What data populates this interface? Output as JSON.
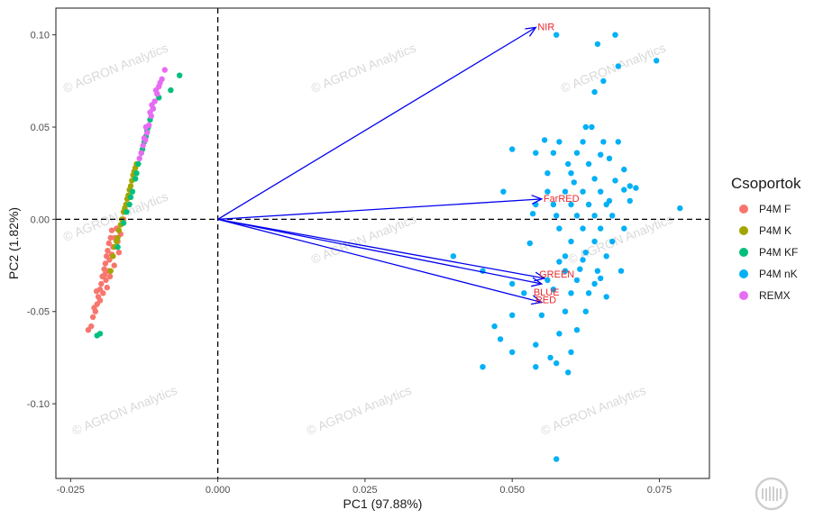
{
  "chart_data": {
    "type": "scatter",
    "title": "",
    "xlabel": "PC1 (97.88%)",
    "ylabel": "PC2 (1.82%)",
    "xlim": [
      -0.0275,
      0.0835
    ],
    "ylim": [
      -0.1405,
      0.1145
    ],
    "xticks": [
      -0.025,
      0.0,
      0.025,
      0.05,
      0.075
    ],
    "xtick_labels": [
      "-0.025",
      "0.000",
      "0.025",
      "0.050",
      "0.075"
    ],
    "yticks": [
      -0.1,
      -0.05,
      0.0,
      0.05,
      0.1
    ],
    "ytick_labels": [
      "-0.10",
      "-0.05",
      "0.00",
      "0.05",
      "0.10"
    ],
    "reference_lines": {
      "x": 0,
      "y": 0,
      "style": "dashed"
    },
    "grid": false,
    "legend": {
      "title": "Csoportok",
      "position": "right"
    },
    "series": [
      {
        "name": "P4M F",
        "color": "#F8766D",
        "points": [
          [
            -0.0215,
            -0.058
          ],
          [
            -0.0212,
            -0.053
          ],
          [
            -0.0208,
            -0.05
          ],
          [
            -0.0205,
            -0.046
          ],
          [
            -0.0203,
            -0.042
          ],
          [
            -0.02,
            -0.038
          ],
          [
            -0.0198,
            -0.035
          ],
          [
            -0.0196,
            -0.031
          ],
          [
            -0.0193,
            -0.027
          ],
          [
            -0.0191,
            -0.024
          ],
          [
            -0.0189,
            -0.02
          ],
          [
            -0.0187,
            -0.017
          ],
          [
            -0.0185,
            -0.013
          ],
          [
            -0.0182,
            -0.01
          ],
          [
            -0.018,
            -0.006
          ],
          [
            -0.021,
            -0.048
          ],
          [
            -0.0195,
            -0.04
          ],
          [
            -0.019,
            -0.033
          ],
          [
            -0.0184,
            -0.022
          ],
          [
            -0.0178,
            -0.015
          ],
          [
            -0.0175,
            -0.01
          ],
          [
            -0.0172,
            -0.005
          ],
          [
            -0.0186,
            -0.028
          ],
          [
            -0.02,
            -0.044
          ],
          [
            -0.018,
            -0.019
          ],
          [
            -0.022,
            -0.06
          ],
          [
            -0.0188,
            -0.037
          ],
          [
            -0.0192,
            -0.03
          ],
          [
            -0.017,
            -0.012
          ],
          [
            -0.0176,
            -0.025
          ],
          [
            -0.0165,
            -0.008
          ],
          [
            -0.016,
            0.0
          ],
          [
            -0.0206,
            -0.039
          ],
          [
            -0.0183,
            -0.031
          ],
          [
            -0.0168,
            -0.018
          ]
        ]
      },
      {
        "name": "P4M K",
        "color": "#A3A500",
        "points": [
          [
            -0.0182,
            -0.028
          ],
          [
            -0.0178,
            -0.02
          ],
          [
            -0.0172,
            -0.012
          ],
          [
            -0.0168,
            -0.006
          ],
          [
            -0.0163,
            0.0
          ],
          [
            -0.0158,
            0.006
          ],
          [
            -0.0154,
            0.011
          ],
          [
            -0.015,
            0.016
          ],
          [
            -0.0146,
            0.021
          ],
          [
            -0.0142,
            0.026
          ],
          [
            -0.0138,
            0.03
          ],
          [
            -0.016,
            0.004
          ],
          [
            -0.0152,
            0.013
          ],
          [
            -0.0144,
            0.024
          ],
          [
            -0.0165,
            -0.003
          ],
          [
            -0.0156,
            0.008
          ],
          [
            -0.0148,
            0.018
          ],
          [
            -0.017,
            -0.01
          ],
          [
            -0.014,
            0.028
          ],
          [
            -0.0175,
            -0.015
          ]
        ]
      },
      {
        "name": "P4M KF",
        "color": "#00BF7D",
        "points": [
          [
            -0.0205,
            -0.063
          ],
          [
            -0.02,
            -0.062
          ],
          [
            -0.017,
            -0.015
          ],
          [
            -0.016,
            -0.002
          ],
          [
            -0.015,
            0.008
          ],
          [
            -0.0145,
            0.015
          ],
          [
            -0.014,
            0.022
          ],
          [
            -0.0135,
            0.03
          ],
          [
            -0.013,
            0.036
          ],
          [
            -0.0125,
            0.042
          ],
          [
            -0.012,
            0.048
          ],
          [
            -0.0115,
            0.054
          ],
          [
            -0.011,
            0.06
          ],
          [
            -0.01,
            0.066
          ],
          [
            -0.008,
            0.07
          ],
          [
            -0.0065,
            0.078
          ],
          [
            -0.0138,
            0.025
          ],
          [
            -0.0128,
            0.038
          ],
          [
            -0.0118,
            0.05
          ],
          [
            -0.0155,
            0.004
          ],
          [
            -0.0148,
            0.012
          ],
          [
            -0.0122,
            0.045
          ]
        ]
      },
      {
        "name": "P4M nK",
        "color": "#00B0F6",
        "points": [
          [
            0.0575,
            0.1
          ],
          [
            0.0675,
            0.1
          ],
          [
            0.0645,
            0.095
          ],
          [
            0.0745,
            0.086
          ],
          [
            0.068,
            0.083
          ],
          [
            0.0655,
            0.075
          ],
          [
            0.064,
            0.069
          ],
          [
            0.0625,
            0.05
          ],
          [
            0.0635,
            0.05
          ],
          [
            0.0555,
            0.043
          ],
          [
            0.058,
            0.042
          ],
          [
            0.062,
            0.042
          ],
          [
            0.0655,
            0.042
          ],
          [
            0.068,
            0.042
          ],
          [
            0.05,
            0.038
          ],
          [
            0.054,
            0.036
          ],
          [
            0.057,
            0.036
          ],
          [
            0.061,
            0.036
          ],
          [
            0.065,
            0.035
          ],
          [
            0.0665,
            0.033
          ],
          [
            0.0595,
            0.03
          ],
          [
            0.063,
            0.03
          ],
          [
            0.069,
            0.027
          ],
          [
            0.056,
            0.025
          ],
          [
            0.06,
            0.025
          ],
          [
            0.064,
            0.022
          ],
          [
            0.0675,
            0.021
          ],
          [
            0.07,
            0.018
          ],
          [
            0.0485,
            0.015
          ],
          [
            0.056,
            0.015
          ],
          [
            0.059,
            0.015
          ],
          [
            0.062,
            0.015
          ],
          [
            0.065,
            0.015
          ],
          [
            0.069,
            0.016
          ],
          [
            0.071,
            0.017
          ],
          [
            0.054,
            0.008
          ],
          [
            0.057,
            0.008
          ],
          [
            0.06,
            0.008
          ],
          [
            0.063,
            0.008
          ],
          [
            0.066,
            0.008
          ],
          [
            0.07,
            0.01
          ],
          [
            0.0535,
            0.003
          ],
          [
            0.0575,
            0.002
          ],
          [
            0.061,
            0.002
          ],
          [
            0.064,
            0.002
          ],
          [
            0.067,
            0.002
          ],
          [
            0.0785,
            0.006
          ],
          [
            0.058,
            -0.005
          ],
          [
            0.062,
            -0.005
          ],
          [
            0.065,
            -0.005
          ],
          [
            0.069,
            -0.005
          ],
          [
            0.053,
            -0.013
          ],
          [
            0.06,
            -0.012
          ],
          [
            0.064,
            -0.012
          ],
          [
            0.067,
            -0.012
          ],
          [
            0.04,
            -0.02
          ],
          [
            0.059,
            -0.02
          ],
          [
            0.062,
            -0.022
          ],
          [
            0.066,
            -0.02
          ],
          [
            0.045,
            -0.028
          ],
          [
            0.058,
            -0.023
          ],
          [
            0.0615,
            -0.027
          ],
          [
            0.0645,
            -0.028
          ],
          [
            0.0685,
            -0.028
          ],
          [
            0.05,
            -0.035
          ],
          [
            0.056,
            -0.033
          ],
          [
            0.061,
            -0.033
          ],
          [
            0.064,
            -0.035
          ],
          [
            0.052,
            -0.04
          ],
          [
            0.057,
            -0.038
          ],
          [
            0.06,
            -0.04
          ],
          [
            0.063,
            -0.04
          ],
          [
            0.066,
            -0.042
          ],
          [
            0.05,
            -0.052
          ],
          [
            0.055,
            -0.052
          ],
          [
            0.059,
            -0.05
          ],
          [
            0.0625,
            -0.05
          ],
          [
            0.048,
            -0.065
          ],
          [
            0.054,
            -0.068
          ],
          [
            0.058,
            -0.062
          ],
          [
            0.061,
            -0.06
          ],
          [
            0.05,
            -0.072
          ],
          [
            0.0565,
            -0.075
          ],
          [
            0.06,
            -0.072
          ],
          [
            0.045,
            -0.08
          ],
          [
            0.054,
            -0.08
          ],
          [
            0.0575,
            -0.078
          ],
          [
            0.0595,
            -0.083
          ],
          [
            0.0575,
            -0.13
          ],
          [
            0.047,
            -0.058
          ],
          [
            0.059,
            -0.028
          ],
          [
            0.065,
            -0.032
          ],
          [
            0.0605,
            0.02
          ],
          [
            0.0665,
            0.01
          ],
          [
            0.0625,
            -0.018
          ]
        ]
      },
      {
        "name": "REMX",
        "color": "#E76BF3",
        "points": [
          [
            -0.009,
            0.081
          ],
          [
            -0.0095,
            0.076
          ],
          [
            -0.01,
            0.072
          ],
          [
            -0.0103,
            0.068
          ],
          [
            -0.0107,
            0.064
          ],
          [
            -0.011,
            0.06
          ],
          [
            -0.0113,
            0.056
          ],
          [
            -0.0117,
            0.051
          ],
          [
            -0.012,
            0.047
          ],
          [
            -0.0123,
            0.043
          ],
          [
            -0.0127,
            0.04
          ],
          [
            -0.013,
            0.036
          ],
          [
            -0.0105,
            0.07
          ],
          [
            -0.0115,
            0.058
          ],
          [
            -0.0122,
            0.05
          ],
          [
            -0.0098,
            0.074
          ],
          [
            -0.0112,
            0.062
          ],
          [
            -0.0125,
            0.044
          ],
          [
            -0.0133,
            0.033
          ]
        ]
      }
    ],
    "loadings": [
      {
        "name": "NIR",
        "x": 0.054,
        "y": 0.104
      },
      {
        "name": "FarRED",
        "x": 0.055,
        "y": 0.011
      },
      {
        "name": "GREEN",
        "x": 0.0555,
        "y": -0.032
      },
      {
        "name": "BLUE",
        "x": 0.055,
        "y": -0.035
      },
      {
        "name": "RED",
        "x": 0.055,
        "y": -0.045
      }
    ],
    "loading_color": "#0000ee",
    "loading_label_color": "#e8282b",
    "watermark_text": "© AGRON Analytics"
  }
}
